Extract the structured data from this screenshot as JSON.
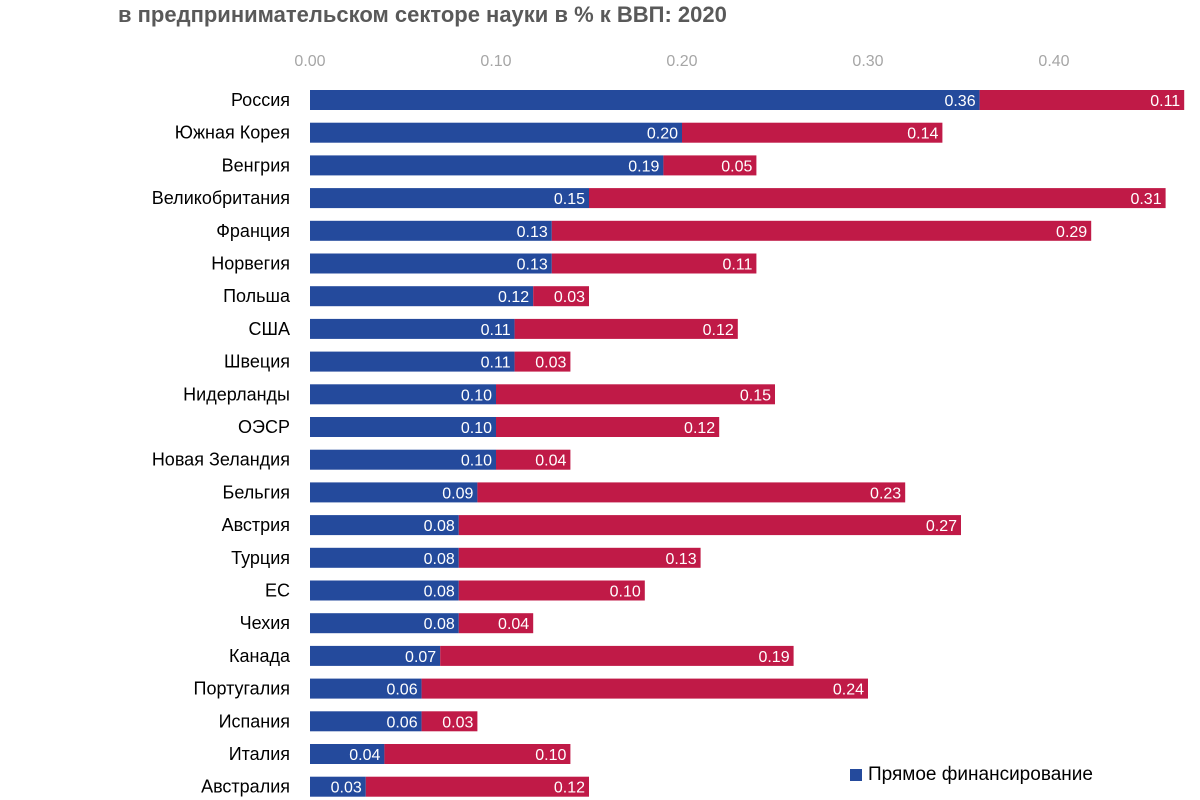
{
  "chart_data": {
    "type": "bar",
    "orientation": "horizontal",
    "stacked": true,
    "title": "в предпринимательском секторе науки в % к ВВП: 2020",
    "xlabel": "",
    "ylabel": "",
    "xlim": [
      0,
      0.47
    ],
    "xticks": [
      "0.00",
      "0.10",
      "0.20",
      "0.30",
      "0.40"
    ],
    "grid": false,
    "legend_position": "bottom-right",
    "categories": [
      "Россия",
      "Южная Корея",
      "Венгрия",
      "Великобритания",
      "Франция",
      "Норвегия",
      "Польша",
      "США",
      "Швеция",
      "Нидерланды",
      "ОЭСР",
      "Новая Зеландия",
      "Бельгия",
      "Австрия",
      "Турция",
      "ЕС",
      "Чехия",
      "Канада",
      "Португалия",
      "Испания",
      "Италия",
      "Австралия"
    ],
    "series": [
      {
        "name": "Прямое финансирование",
        "color": "#244a9c",
        "values": [
          0.36,
          0.2,
          0.19,
          0.15,
          0.13,
          0.13,
          0.12,
          0.11,
          0.11,
          0.1,
          0.1,
          0.1,
          0.09,
          0.08,
          0.08,
          0.08,
          0.08,
          0.07,
          0.06,
          0.06,
          0.04,
          0.03
        ],
        "labels": [
          "0.36",
          "0.20",
          "0.19",
          "0.15",
          "0.13",
          "0.13",
          "0.12",
          "0.11",
          "0.11",
          "0.10",
          "0.10",
          "0.10",
          "0.09",
          "0.08",
          "0.08",
          "0.08",
          "0.08",
          "0.07",
          "0.06",
          "0.06",
          "0.04",
          "0.03"
        ]
      },
      {
        "color": "#c01a47",
        "values": [
          0.11,
          0.14,
          0.05,
          0.31,
          0.29,
          0.11,
          0.03,
          0.12,
          0.03,
          0.15,
          0.12,
          0.04,
          0.23,
          0.27,
          0.13,
          0.1,
          0.04,
          0.19,
          0.24,
          0.03,
          0.1,
          0.12
        ],
        "labels": [
          "0.11",
          "0.14",
          "0.05",
          "0.31",
          "0.29",
          "0.11",
          "0.03",
          "0.12",
          "0.03",
          "0.15",
          "0.12",
          "0.04",
          "0.23",
          "0.27",
          "0.13",
          "0.10",
          "0.04",
          "0.19",
          "0.24",
          "0.03",
          "0.10",
          "0.12"
        ]
      }
    ]
  }
}
